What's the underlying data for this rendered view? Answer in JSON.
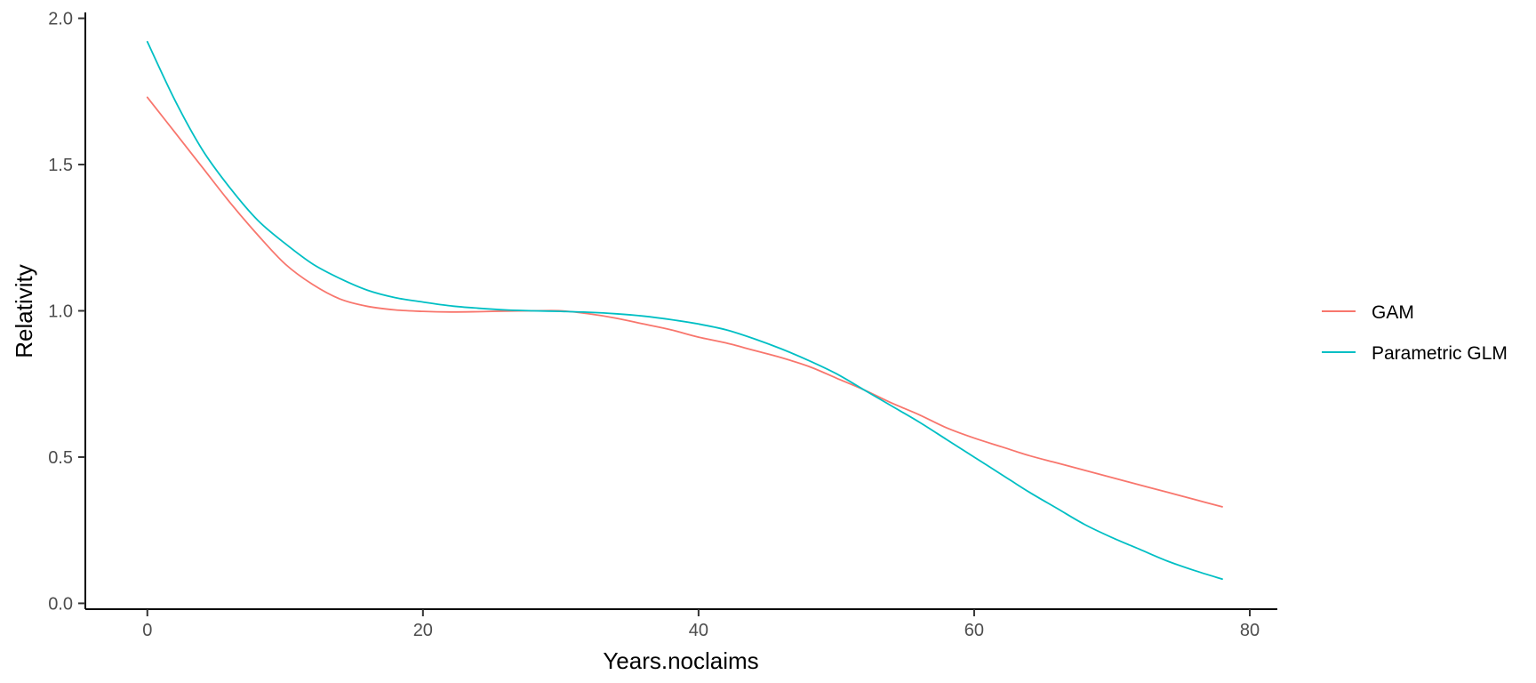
{
  "chart_data": {
    "type": "line",
    "title": "",
    "xlabel": "Years.noclaims",
    "ylabel": "Relativity",
    "xlim": [
      -4.5,
      82
    ],
    "ylim": [
      -0.02,
      2.02
    ],
    "x_ticks": [
      0,
      20,
      40,
      60,
      80
    ],
    "y_ticks": [
      0.0,
      0.5,
      1.0,
      1.5,
      2.0
    ],
    "x_tick_labels": [
      "0",
      "20",
      "40",
      "60",
      "80"
    ],
    "y_tick_labels": [
      "0.0",
      "0.5",
      "1.0",
      "1.5",
      "2.0"
    ],
    "grid": false,
    "legend_position": "right",
    "series": [
      {
        "name": "GAM",
        "color": "#F8766D",
        "x": [
          0,
          2,
          4,
          6,
          8,
          10,
          12,
          14,
          16,
          18,
          20,
          22,
          24,
          26,
          28,
          30,
          32,
          34,
          36,
          38,
          40,
          42,
          44,
          46,
          48,
          50,
          52,
          54,
          56,
          58,
          60,
          62,
          64,
          66,
          68,
          70,
          72,
          74,
          76,
          78
        ],
        "y": [
          1.73,
          1.61,
          1.49,
          1.37,
          1.26,
          1.16,
          1.09,
          1.04,
          1.015,
          1.003,
          0.998,
          0.996,
          0.997,
          0.999,
          1.0,
          1.0,
          0.99,
          0.975,
          0.955,
          0.935,
          0.91,
          0.89,
          0.865,
          0.84,
          0.81,
          0.77,
          0.73,
          0.685,
          0.645,
          0.6,
          0.565,
          0.535,
          0.505,
          0.48,
          0.455,
          0.43,
          0.405,
          0.38,
          0.355,
          0.33
        ]
      },
      {
        "name": "Parametric GLM",
        "color": "#00BFC4",
        "x": [
          0,
          2,
          4,
          6,
          8,
          10,
          12,
          14,
          16,
          18,
          20,
          22,
          24,
          26,
          28,
          30,
          32,
          34,
          36,
          38,
          40,
          42,
          44,
          46,
          48,
          50,
          52,
          54,
          56,
          58,
          60,
          62,
          64,
          66,
          68,
          70,
          72,
          74,
          76,
          78
        ],
        "y": [
          1.92,
          1.72,
          1.55,
          1.42,
          1.31,
          1.23,
          1.16,
          1.11,
          1.07,
          1.045,
          1.03,
          1.017,
          1.009,
          1.003,
          1.0,
          0.998,
          0.995,
          0.99,
          0.982,
          0.97,
          0.955,
          0.935,
          0.905,
          0.87,
          0.83,
          0.785,
          0.73,
          0.675,
          0.62,
          0.56,
          0.5,
          0.44,
          0.38,
          0.325,
          0.27,
          0.225,
          0.185,
          0.145,
          0.112,
          0.083
        ]
      }
    ]
  }
}
